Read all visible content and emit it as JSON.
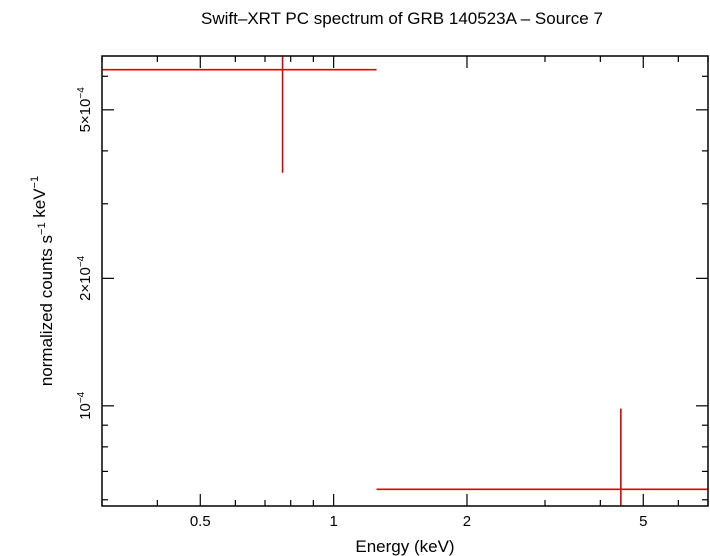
{
  "chart_data": {
    "type": "scatter",
    "title": "Swift–XRT PC spectrum of GRB 140523A – Source 7",
    "xlabel": "Energy (keV)",
    "ylabel": {
      "parts": [
        {
          "t": "normalized counts s"
        },
        {
          "t": "−1",
          "sup": true
        },
        {
          "t": " keV"
        },
        {
          "t": "−1",
          "sup": true
        }
      ]
    },
    "x_scale": "log",
    "y_scale": "log",
    "xlim": [
      0.3,
      7.0
    ],
    "ylim": [
      5.8e-05,
      0.00067
    ],
    "x_ticks_major": [
      {
        "value": 0.5,
        "label": "0.5"
      },
      {
        "value": 1,
        "label": "1"
      },
      {
        "value": 2,
        "label": "2"
      },
      {
        "value": 5,
        "label": "5"
      }
    ],
    "x_ticks_minor": [
      0.3,
      0.4,
      0.6,
      0.7,
      0.8,
      0.9,
      3,
      4,
      6,
      7
    ],
    "y_ticks_major": [
      {
        "value": 0.0001,
        "mantissa": "",
        "exponent": "−4"
      },
      {
        "value": 0.0002,
        "mantissa": "2",
        "exponent": "−4"
      },
      {
        "value": 0.0005,
        "mantissa": "5",
        "exponent": "−4"
      }
    ],
    "y_ticks_minor": [
      6e-05,
      7e-05,
      8e-05,
      9e-05,
      0.0003,
      0.0004,
      0.0006
    ],
    "series": [
      {
        "color": "#e00000",
        "points": [
          {
            "x": 0.767,
            "xerr": [
              0.3,
              1.25
            ],
            "y": 0.000622,
            "yerr": [
              0.000355,
              0.00067
            ]
          },
          {
            "x": 4.45,
            "xerr": [
              1.25,
              7.0
            ],
            "y": 6.35e-05,
            "yerr": [
              5.8e-05,
              9.85e-05
            ]
          }
        ]
      }
    ]
  }
}
